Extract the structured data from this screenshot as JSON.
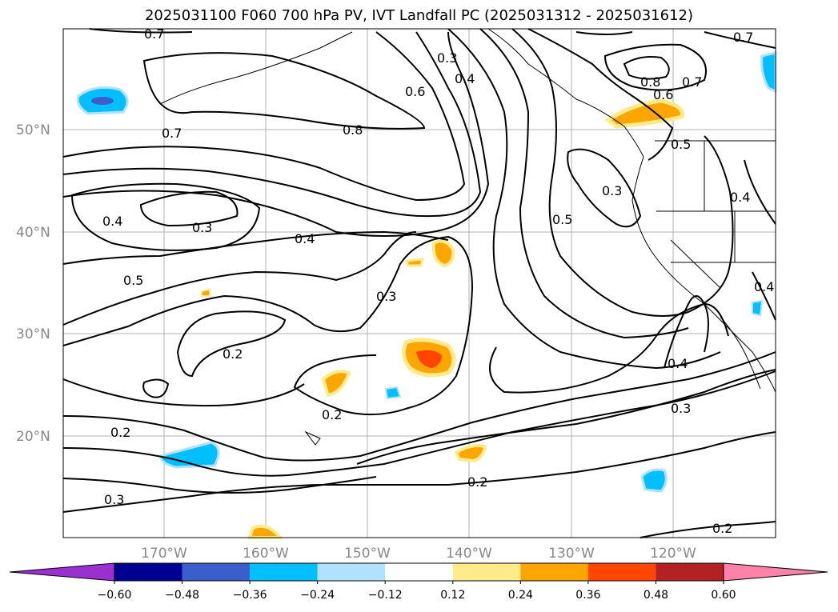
{
  "title": "2025031100 F060 700 hPa PV, IVT Landfall PC (2025031312 - 2025031612)",
  "lat_labels": [
    "50°N",
    "40°N",
    "30°N",
    "20°N"
  ],
  "lon_labels": [
    "170°W",
    "160°W",
    "150°W",
    "140°W",
    "130°W",
    "120°W"
  ],
  "contour_labels": [
    "0.7",
    "0.7",
    "0.3",
    "0.4",
    "0.6",
    "0.8",
    "0.8",
    "0.7",
    "0.7",
    "0.6",
    "0.5",
    "0.4",
    "0.3",
    "0.4",
    "0.5",
    "0.3",
    "0.4",
    "0.5",
    "0.2",
    "0.2",
    "0.2",
    "0.3",
    "0.3",
    "0.4",
    "0.4",
    "0.3",
    "0.2",
    "0.2"
  ],
  "colorbar": {
    "ticks": [
      "−0.60",
      "−0.48",
      "−0.36",
      "−0.24",
      "−0.12",
      "0.12",
      "0.24",
      "0.36",
      "0.48",
      "0.60"
    ],
    "colors": [
      "#9b30d0",
      "#000090",
      "#3a5fcd",
      "#00bfff",
      "#b0e2ff",
      "#ffffff",
      "#ffeb8a",
      "#ffa500",
      "#ff4500",
      "#b22222",
      "#ff82ab"
    ]
  }
}
